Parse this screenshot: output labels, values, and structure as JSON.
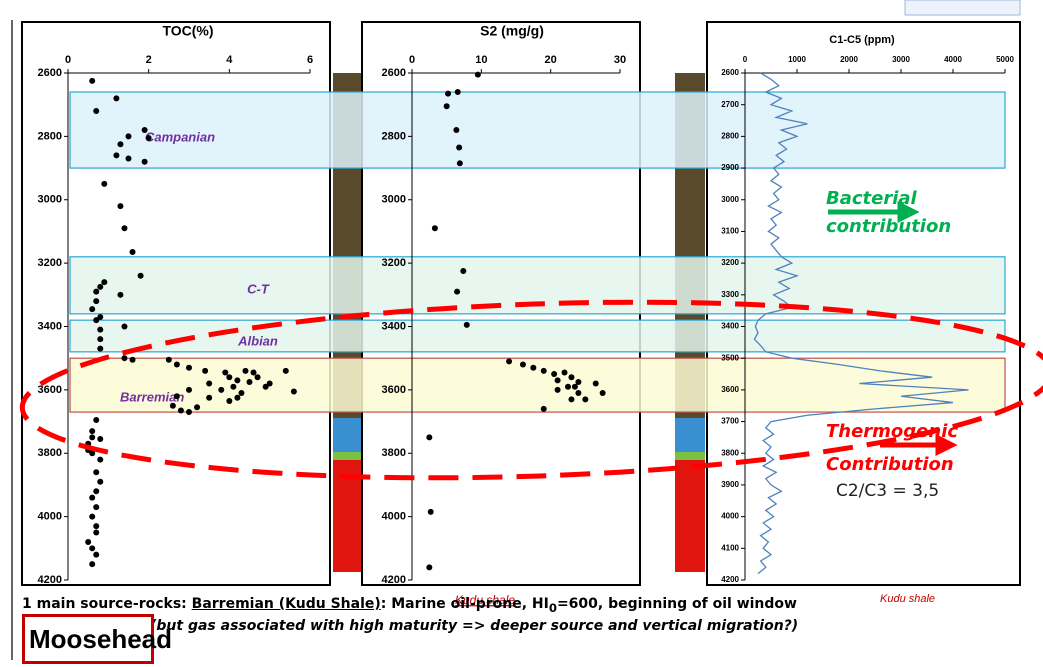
{
  "chart_data": [
    {
      "type": "scatter",
      "title": "TOC(%)",
      "color": "#000000",
      "xlim": [
        0,
        6
      ],
      "xticks": [
        0,
        2,
        4,
        6
      ],
      "ylim": [
        2600,
        4200
      ],
      "yticks": [
        2600,
        2800,
        3000,
        3200,
        3400,
        3600,
        3800,
        4000,
        4200
      ],
      "values": [
        0.6,
        1.2,
        0.7,
        1.9,
        1.5,
        2.0,
        1.3,
        1.2,
        1.5,
        1.9,
        0.9,
        1.3,
        1.4,
        1.6,
        1.8,
        0.9,
        0.8,
        0.7,
        1.3,
        0.7,
        0.6,
        0.8,
        0.7,
        1.4,
        0.8,
        0.8,
        0.8,
        1.4,
        1.6,
        2.5,
        2.7,
        3.0,
        3.4,
        3.9,
        4.4,
        4.6,
        5.4,
        4.0,
        4.7,
        4.2,
        4.5,
        3.5,
        5.0,
        4.1,
        4.9,
        3.0,
        3.8,
        5.6,
        4.3,
        2.7,
        3.5,
        4.2,
        4.0,
        2.6,
        3.2,
        2.8,
        3.0,
        0.7,
        0.6,
        0.6,
        0.8,
        0.5,
        0.5,
        0.6,
        0.8,
        0.7,
        0.8,
        0.7,
        0.6,
        0.7,
        0.6,
        0.7,
        0.7,
        0.5,
        0.6,
        0.7,
        0.6
      ],
      "depth": [
        2625,
        2680,
        2720,
        2780,
        2800,
        2805,
        2825,
        2860,
        2870,
        2880,
        2950,
        3020,
        3090,
        3165,
        3240,
        3260,
        3275,
        3290,
        3300,
        3320,
        3345,
        3370,
        3380,
        3400,
        3410,
        3440,
        3470,
        3500,
        3505,
        3505,
        3520,
        3530,
        3540,
        3545,
        3540,
        3545,
        3540,
        3560,
        3560,
        3570,
        3575,
        3580,
        3580,
        3590,
        3590,
        3600,
        3600,
        3605,
        3610,
        3620,
        3625,
        3625,
        3635,
        3650,
        3655,
        3665,
        3670,
        3695,
        3730,
        3750,
        3755,
        3770,
        3790,
        3800,
        3820,
        3860,
        3890,
        3920,
        3940,
        3970,
        4000,
        4030,
        4050,
        4080,
        4100,
        4120,
        4150
      ]
    },
    {
      "type": "scatter",
      "title": "S2 (mg/g)",
      "color": "#000000",
      "xlim": [
        0,
        30
      ],
      "xticks": [
        0,
        10,
        20,
        30
      ],
      "ylim": [
        2600,
        4200
      ],
      "yticks": [
        2600,
        2800,
        3000,
        3200,
        3400,
        3600,
        3800,
        4000,
        4200
      ],
      "values": [
        9.5,
        5.2,
        6.6,
        5.0,
        6.4,
        6.8,
        6.9,
        3.3,
        7.4,
        6.5,
        7.9,
        14,
        16,
        17.5,
        19,
        20.5,
        22,
        23,
        21,
        24,
        22.5,
        23.5,
        26.5,
        21,
        24,
        27.5,
        23,
        25,
        19,
        2.5,
        2.7,
        2.5
      ],
      "depth": [
        2605,
        2665,
        2660,
        2705,
        2780,
        2835,
        2885,
        3090,
        3225,
        3290,
        3395,
        3510,
        3520,
        3530,
        3540,
        3550,
        3545,
        3560,
        3570,
        3575,
        3590,
        3590,
        3580,
        3600,
        3610,
        3610,
        3630,
        3630,
        3660,
        3750,
        3985,
        4160
      ]
    },
    {
      "type": "line",
      "title": "C1-C5 (ppm)",
      "color": "#4f81bd",
      "xlim": [
        0,
        5000
      ],
      "xticks": [
        0,
        1000,
        2000,
        3000,
        4000,
        5000
      ],
      "ylim": [
        2600,
        4200
      ],
      "yticks": [
        2600,
        2700,
        2800,
        2900,
        3000,
        3100,
        3200,
        3300,
        3400,
        3500,
        3600,
        3700,
        3800,
        3900,
        4000,
        4100,
        4200
      ],
      "values": [
        300,
        500,
        650,
        400,
        700,
        500,
        900,
        600,
        1200,
        700,
        1000,
        650,
        800,
        600,
        750,
        550,
        650,
        500,
        700,
        550,
        650,
        450,
        700,
        500,
        600,
        450,
        650,
        500,
        600,
        700,
        900,
        600,
        1000,
        650,
        850,
        550,
        750,
        900,
        400,
        250,
        200,
        250,
        180,
        300,
        400,
        900,
        1800,
        2600,
        3600,
        2200,
        4300,
        3000,
        4000,
        2500,
        1200,
        500,
        400,
        550,
        350,
        500,
        400,
        550,
        350,
        600,
        400,
        500,
        700,
        450,
        600,
        400,
        550,
        350,
        500,
        300,
        450,
        350,
        500,
        300,
        400,
        250
      ],
      "depth": [
        2600,
        2620,
        2640,
        2660,
        2680,
        2700,
        2720,
        2740,
        2760,
        2780,
        2800,
        2820,
        2840,
        2860,
        2880,
        2900,
        2920,
        2940,
        2960,
        2980,
        3000,
        3020,
        3040,
        3060,
        3080,
        3100,
        3120,
        3140,
        3160,
        3180,
        3200,
        3220,
        3240,
        3260,
        3280,
        3300,
        3320,
        3340,
        3360,
        3380,
        3400,
        3420,
        3440,
        3460,
        3480,
        3500,
        3520,
        3540,
        3560,
        3580,
        3600,
        3620,
        3640,
        3660,
        3680,
        3700,
        3720,
        3740,
        3760,
        3780,
        3800,
        3820,
        3840,
        3860,
        3880,
        3900,
        3920,
        3940,
        3960,
        3980,
        4000,
        4020,
        4040,
        4060,
        4080,
        4100,
        4120,
        4140,
        4160,
        4180
      ]
    }
  ],
  "zones": [
    {
      "label": "Campanian",
      "top": 2660,
      "base": 2900,
      "color": "#dcf1fa",
      "edge": "#2aa7d6"
    },
    {
      "label": "C-T",
      "top": 3180,
      "base": 3360,
      "color": "#e3f4ec",
      "edge": "#2aa7d6"
    },
    {
      "label": "Albian",
      "top": 3380,
      "base": 3480,
      "color": "#e3f4ec",
      "edge": "#2aa7d6"
    },
    {
      "label": "Barremian",
      "top": 3500,
      "base": 3670,
      "color": "#fdfbd3",
      "edge": "#c0504d"
    }
  ],
  "annotations": {
    "kudu_s2": "Kudu shale",
    "kudu_gas": "Kudu shale",
    "bacterial": [
      "Bacterial",
      "contribution"
    ],
    "thermogenic": [
      "Thermogenic",
      "Contribution"
    ],
    "ratio": "C2/C3 = 3,5"
  },
  "footer": {
    "line1": [
      "1 main source-rocks: ",
      "Barremian (Kudu Shale)",
      ": Marine oil-prone, HI",
      "0",
      "=600, beginning of oil window"
    ],
    "line2": "(but gas associated with high maturity => deeper source and vertical migration?)",
    "brand": "Moosehead"
  }
}
